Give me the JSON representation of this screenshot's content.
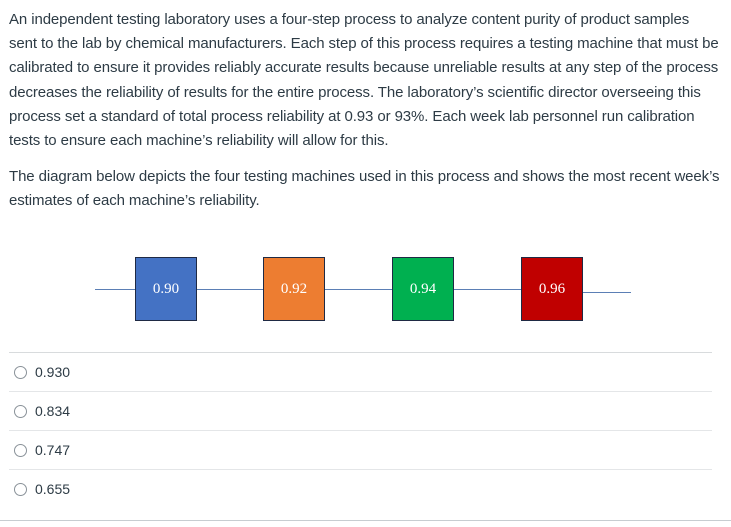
{
  "question": {
    "paragraph_1": "An independent testing laboratory uses a four-step process to analyze content purity of product samples sent to the lab by chemical manufacturers. Each step of this process requires a testing machine that must be calibrated to ensure it provides reliably accurate results because unreliable results at any step of the process decreases the reliability of results for the entire process. The laboratory’s scientific director overseeing this process set a standard of total process reliability at 0.93 or 93%. Each week lab personnel run calibration tests to ensure each machine’s reliability will allow for this.",
    "paragraph_2": "The diagram below depicts the four testing machines used in this process and shows the most recent week’s estimates of each machine’s reliability."
  },
  "diagram": {
    "machines": [
      {
        "label": "0.90",
        "color": "#4472c4"
      },
      {
        "label": "0.92",
        "color": "#ed7d31"
      },
      {
        "label": "0.94",
        "color": "#00b050"
      },
      {
        "label": "0.96",
        "color": "#c00000"
      }
    ],
    "wire_color": "#5b7fb5"
  },
  "answers": [
    {
      "label": "0.930"
    },
    {
      "label": "0.834"
    },
    {
      "label": "0.747"
    },
    {
      "label": "0.655"
    }
  ]
}
